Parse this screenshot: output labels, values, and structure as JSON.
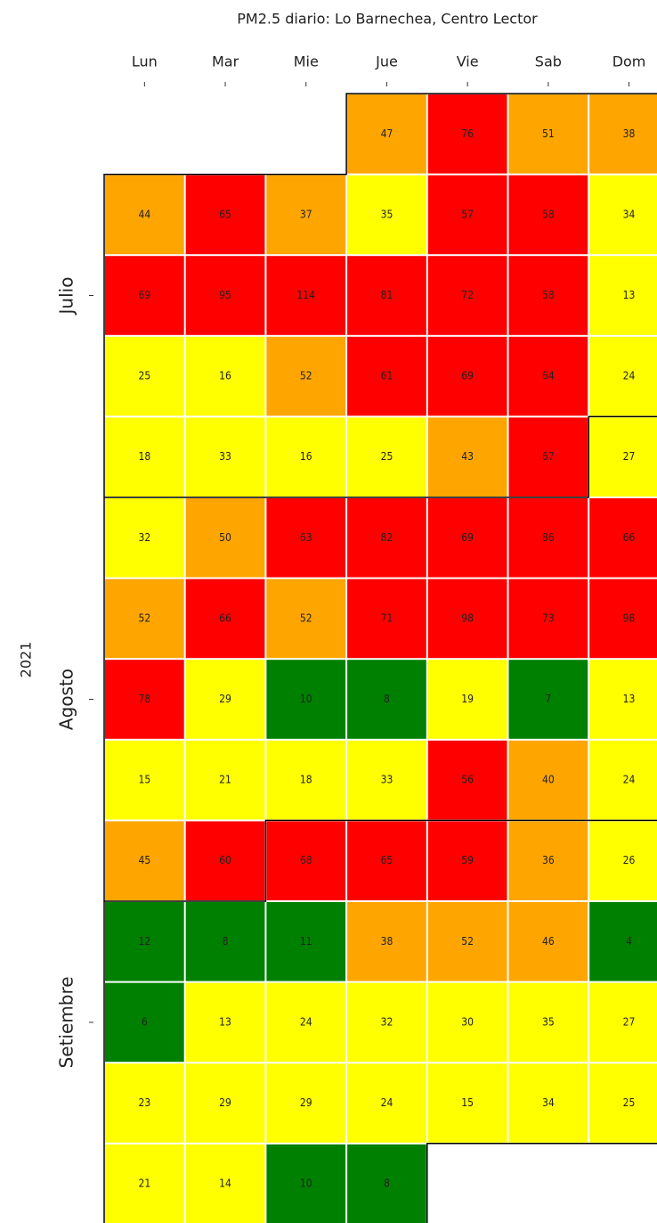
{
  "chart_data": {
    "type": "calendar_heatmap",
    "title": "PM2.5 diario: Lo Barnechea, Centro Lector",
    "ylabel": "2021",
    "x_categories": [
      "Lun",
      "Mar",
      "Mie",
      "Jue",
      "Vie",
      "Sab",
      "Dom"
    ],
    "y_categories": [
      null,
      null,
      "Julio",
      null,
      null,
      null,
      null,
      "Agosto",
      null,
      null,
      null,
      "Setiembre",
      null,
      null
    ],
    "values": [
      [
        null,
        null,
        null,
        47,
        76,
        51,
        38
      ],
      [
        44,
        65,
        37,
        35,
        57,
        58,
        34
      ],
      [
        69,
        95,
        114,
        81,
        72,
        58,
        13
      ],
      [
        25,
        16,
        52,
        61,
        69,
        64,
        24
      ],
      [
        18,
        33,
        16,
        25,
        43,
        67,
        27
      ],
      [
        32,
        50,
        63,
        82,
        69,
        86,
        66
      ],
      [
        52,
        66,
        52,
        71,
        98,
        73,
        98
      ],
      [
        78,
        29,
        10,
        8,
        19,
        7,
        13
      ],
      [
        15,
        21,
        18,
        33,
        56,
        40,
        24
      ],
      [
        45,
        60,
        68,
        65,
        59,
        36,
        26
      ],
      [
        12,
        8,
        11,
        38,
        52,
        46,
        4
      ],
      [
        6,
        13,
        24,
        32,
        30,
        35,
        27
      ],
      [
        23,
        29,
        29,
        24,
        15,
        34,
        25
      ],
      [
        21,
        14,
        10,
        8,
        null,
        null,
        null
      ]
    ],
    "color_levels": [
      {
        "max": 12,
        "color": "#008000"
      },
      {
        "max": 35,
        "color": "#ffff00"
      },
      {
        "max": 55,
        "color": "#ffa500"
      },
      {
        "max": 1000,
        "color": "#ff0000"
      }
    ]
  }
}
